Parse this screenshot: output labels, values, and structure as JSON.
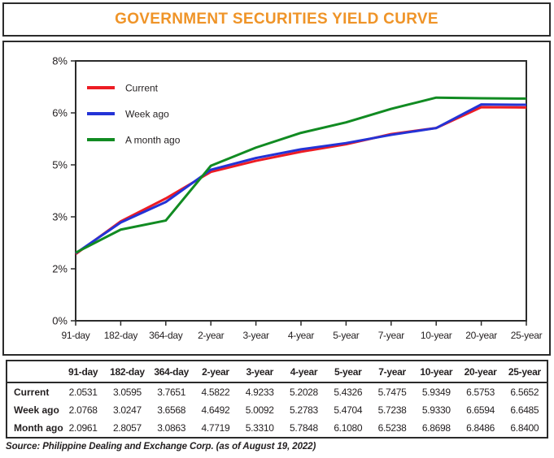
{
  "title": "GOVERNMENT SECURITIES YIELD CURVE",
  "source_note": "Source: Philippine Dealing and Exchange Corp. (as of August 19, 2022)",
  "colors": {
    "title": "#ef9428",
    "border": "#2b2b2b",
    "text": "#231f20",
    "current": "#ed1c24",
    "week_ago": "#2433d6",
    "month_ago": "#118b22"
  },
  "chart_data": {
    "type": "line",
    "categories": [
      "91-day",
      "182-day",
      "364-day",
      "2-year",
      "3-year",
      "4-year",
      "5-year",
      "7-year",
      "10-year",
      "20-year",
      "25-year"
    ],
    "y_tick_labels": [
      "0%",
      "2%",
      "3%",
      "5%",
      "6%",
      "8%"
    ],
    "y_tick_values": [
      0,
      1.6,
      3.2,
      4.8,
      6.4,
      8
    ],
    "ylim": [
      0,
      8
    ],
    "grid": false,
    "legend_position": "top-left",
    "series": [
      {
        "name": "Current",
        "color": "#ed1c24",
        "values": [
          2.0531,
          3.0595,
          3.7651,
          4.5822,
          4.9233,
          5.2028,
          5.4326,
          5.7475,
          5.9349,
          6.5753,
          6.5652
        ]
      },
      {
        "name": "Week ago",
        "color": "#2433d6",
        "values": [
          2.0768,
          3.0247,
          3.6568,
          4.6492,
          5.0092,
          5.2783,
          5.4704,
          5.7238,
          5.933,
          6.6594,
          6.6485
        ]
      },
      {
        "name": "A month ago",
        "color": "#118b22",
        "values": [
          2.0961,
          2.8057,
          3.0863,
          4.7719,
          5.331,
          5.7848,
          6.108,
          6.5238,
          6.8698,
          6.8486,
          6.84
        ]
      }
    ]
  },
  "table": {
    "columns": [
      "91-day",
      "182-day",
      "364-day",
      "2-year",
      "3-year",
      "4-year",
      "5-year",
      "7-year",
      "10-year",
      "20-year",
      "25-year"
    ],
    "rows": [
      {
        "label": "Current",
        "values": [
          "2.0531",
          "3.0595",
          "3.7651",
          "4.5822",
          "4.9233",
          "5.2028",
          "5.4326",
          "5.7475",
          "5.9349",
          "6.5753",
          "6.5652"
        ]
      },
      {
        "label": "Week ago",
        "values": [
          "2.0768",
          "3.0247",
          "3.6568",
          "4.6492",
          "5.0092",
          "5.2783",
          "5.4704",
          "5.7238",
          "5.9330",
          "6.6594",
          "6.6485"
        ]
      },
      {
        "label": "Month ago",
        "values": [
          "2.0961",
          "2.8057",
          "3.0863",
          "4.7719",
          "5.3310",
          "5.7848",
          "6.1080",
          "6.5238",
          "6.8698",
          "6.8486",
          "6.8400"
        ]
      }
    ]
  }
}
